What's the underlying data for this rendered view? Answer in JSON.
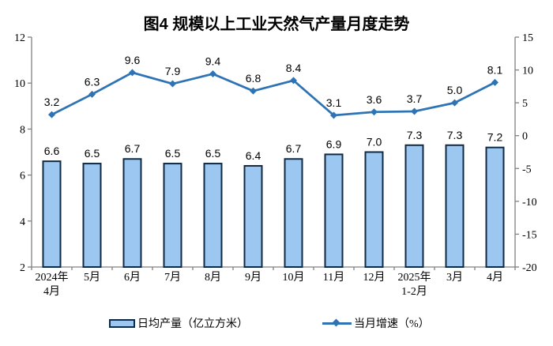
{
  "title": "图4 规模以上工业天然气产量月度走势",
  "chart_data": {
    "type": "bar+line",
    "categories": [
      [
        "2024年",
        "4月"
      ],
      [
        "5月"
      ],
      [
        "6月"
      ],
      [
        "7月"
      ],
      [
        "8月"
      ],
      [
        "9月"
      ],
      [
        "10月"
      ],
      [
        "11月"
      ],
      [
        "12月"
      ],
      [
        "2025年",
        "1-2月"
      ],
      [
        "3月"
      ],
      [
        "4月"
      ]
    ],
    "series": [
      {
        "name": "日均产量（亿立方米）",
        "type": "bar",
        "axis": "left",
        "values": [
          6.6,
          6.5,
          6.7,
          6.5,
          6.5,
          6.4,
          6.7,
          6.9,
          7.0,
          7.3,
          7.3,
          7.2
        ]
      },
      {
        "name": "当月增速（%）",
        "type": "line",
        "axis": "right",
        "values": [
          3.2,
          6.3,
          9.6,
          7.9,
          9.4,
          6.8,
          8.4,
          3.1,
          3.6,
          3.7,
          5.0,
          8.1
        ]
      }
    ],
    "left_axis": {
      "min": 2,
      "max": 12,
      "ticks": [
        12,
        10,
        8,
        6,
        4,
        2
      ]
    },
    "right_axis": {
      "min": -20,
      "max": 15,
      "ticks": [
        15,
        10,
        5,
        0,
        -5,
        -10,
        -15,
        -20
      ]
    },
    "grid": false,
    "legend_position": "bottom"
  },
  "colors": {
    "bar_fill": "#9CC7F0",
    "bar_border": "#112A44",
    "line": "#2E74B5",
    "axis": "#808080",
    "text": "#000000"
  }
}
